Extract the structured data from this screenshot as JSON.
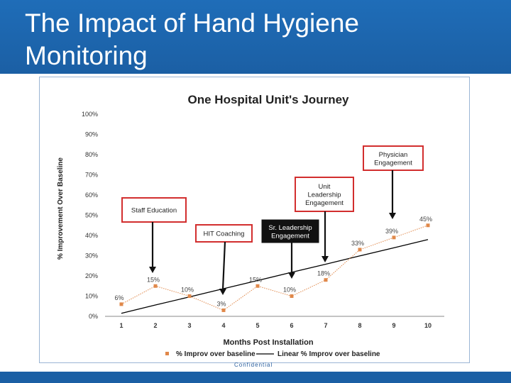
{
  "slide": {
    "title": "The Impact of Hand Hygiene Monitoring",
    "footer": "Confidential",
    "accent_color": "#1b5fa4"
  },
  "chart_data": {
    "type": "line",
    "title": "One Hospital Unit's Journey",
    "xlabel": "Months Post Installation",
    "ylabel": "% Improvement Over Baseline",
    "categories": [
      "1",
      "2",
      "3",
      "4",
      "5",
      "6",
      "7",
      "8",
      "9",
      "10"
    ],
    "series": [
      {
        "name": "% Improv over baseline",
        "color": "#e0884a",
        "values": [
          6,
          15,
          10,
          3,
          15,
          10,
          18,
          33,
          39,
          45
        ],
        "labels": [
          "6%",
          "15%",
          "10%",
          "3%",
          "15%",
          "10%",
          "18%",
          "33%",
          "39%",
          "45%"
        ]
      },
      {
        "name": "Linear % Improv over baseline",
        "color": "#000000",
        "type": "trendline",
        "values": [
          1.5,
          5.6,
          9.6,
          13.7,
          17.7,
          21.8,
          25.8,
          29.9,
          33.9,
          38.0
        ]
      }
    ],
    "ylim": [
      0,
      100
    ],
    "yticks": [
      "0%",
      "10%",
      "20%",
      "30%",
      "40%",
      "50%",
      "60%",
      "70%",
      "80%",
      "90%",
      "100%"
    ],
    "grid": false,
    "legend": "bottom",
    "annotations": [
      {
        "text": [
          "Staff Education"
        ],
        "month": 2,
        "style": "red"
      },
      {
        "text": [
          "HIT Coaching"
        ],
        "month": 4,
        "style": "red"
      },
      {
        "text": [
          "Sr. Leadership",
          "Engagement"
        ],
        "month": 6,
        "style": "black"
      },
      {
        "text": [
          "Unit",
          "Leadership",
          "Engagement"
        ],
        "month": 7,
        "style": "red"
      },
      {
        "text": [
          "Physician",
          "Engagement"
        ],
        "month": 9,
        "style": "red"
      }
    ]
  }
}
